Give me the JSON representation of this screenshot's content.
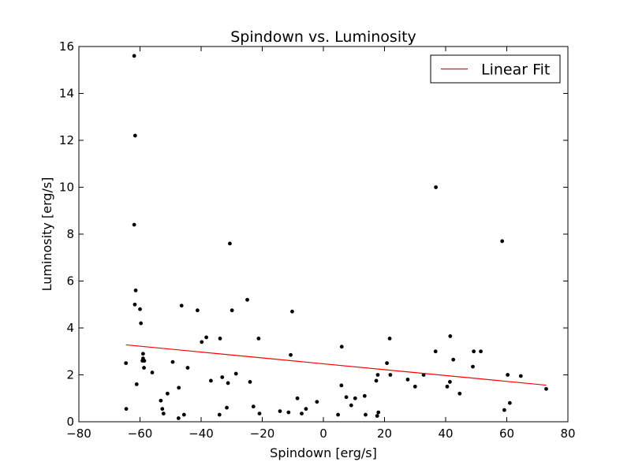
{
  "chart_data": {
    "type": "scatter",
    "title": "Spindown vs. Luminosity",
    "xlabel": "Spindown [erg/s]",
    "ylabel": "Luminosity [erg/s]",
    "xlim": [
      -80,
      80
    ],
    "ylim": [
      0,
      16
    ],
    "xticks": [
      -80,
      -60,
      -40,
      -20,
      0,
      20,
      40,
      60,
      80
    ],
    "yticks": [
      0,
      2,
      4,
      6,
      8,
      10,
      12,
      14,
      16
    ],
    "grid": false,
    "legend": {
      "placement": "top-right",
      "entries": [
        "Linear Fit"
      ]
    },
    "colors": {
      "points": "#000000",
      "fit": "#ff0000",
      "axes": "#000000"
    },
    "series": [
      {
        "kind": "scatter",
        "points": [
          [
            -61.9,
            15.6
          ],
          [
            -61.6,
            12.2
          ],
          [
            -61.9,
            8.4
          ],
          [
            -61.4,
            5.6
          ],
          [
            -61.7,
            5.0
          ],
          [
            -60.0,
            4.8
          ],
          [
            -59.7,
            4.2
          ],
          [
            -59.0,
            2.9
          ],
          [
            -59.0,
            2.7
          ],
          [
            -58.6,
            2.6
          ],
          [
            -59.2,
            2.6
          ],
          [
            -58.7,
            2.3
          ],
          [
            -64.6,
            2.5
          ],
          [
            -64.5,
            0.55
          ],
          [
            -61.1,
            1.6
          ],
          [
            -56.0,
            2.1
          ],
          [
            -53.2,
            0.9
          ],
          [
            -52.7,
            0.55
          ],
          [
            -52.3,
            0.35
          ],
          [
            -51.0,
            1.2
          ],
          [
            -49.3,
            2.55
          ],
          [
            -47.3,
            1.45
          ],
          [
            -46.4,
            4.95
          ],
          [
            -47.4,
            0.15
          ],
          [
            -45.6,
            0.3
          ],
          [
            -44.4,
            2.3
          ],
          [
            -41.2,
            4.75
          ],
          [
            -39.8,
            3.4
          ],
          [
            -38.3,
            3.6
          ],
          [
            -36.8,
            1.75
          ],
          [
            -33.8,
            3.55
          ],
          [
            -34.0,
            0.3
          ],
          [
            -33.1,
            1.9
          ],
          [
            -31.6,
            0.6
          ],
          [
            -31.2,
            1.65
          ],
          [
            -30.6,
            7.6
          ],
          [
            -29.9,
            4.75
          ],
          [
            -28.6,
            2.05
          ],
          [
            -24.9,
            5.2
          ],
          [
            -24.0,
            1.7
          ],
          [
            -22.9,
            0.65
          ],
          [
            -21.2,
            3.55
          ],
          [
            -20.9,
            0.35
          ],
          [
            -14.2,
            0.45
          ],
          [
            -11.4,
            0.4
          ],
          [
            -10.7,
            2.85
          ],
          [
            -10.2,
            4.7
          ],
          [
            -8.5,
            1.0
          ],
          [
            -7.1,
            0.35
          ],
          [
            -5.7,
            0.55
          ],
          [
            -2.1,
            0.85
          ],
          [
            4.8,
            0.3
          ],
          [
            5.9,
            1.55
          ],
          [
            6.0,
            3.2
          ],
          [
            7.5,
            1.05
          ],
          [
            9.1,
            0.7
          ],
          [
            10.4,
            1.0
          ],
          [
            13.5,
            1.1
          ],
          [
            13.8,
            0.3
          ],
          [
            17.3,
            1.75
          ],
          [
            17.8,
            2.0
          ],
          [
            17.6,
            0.25
          ],
          [
            18.0,
            0.4
          ],
          [
            20.8,
            2.5
          ],
          [
            21.7,
            3.55
          ],
          [
            21.9,
            2.0
          ],
          [
            27.6,
            1.8
          ],
          [
            30.0,
            1.5
          ],
          [
            32.8,
            2.0
          ],
          [
            36.8,
            10.0
          ],
          [
            36.7,
            3.0
          ],
          [
            40.5,
            1.5
          ],
          [
            41.4,
            1.7
          ],
          [
            41.5,
            3.65
          ],
          [
            42.5,
            2.65
          ],
          [
            44.6,
            1.2
          ],
          [
            48.9,
            2.35
          ],
          [
            49.2,
            3.0
          ],
          [
            51.5,
            3.0
          ],
          [
            58.5,
            7.7
          ],
          [
            59.2,
            0.5
          ],
          [
            60.3,
            2.0
          ],
          [
            61.0,
            0.8
          ],
          [
            64.6,
            1.95
          ],
          [
            72.9,
            1.4
          ]
        ]
      },
      {
        "name": "Linear Fit",
        "kind": "line",
        "points": [
          [
            -64.6,
            3.28
          ],
          [
            72.9,
            1.56
          ]
        ]
      }
    ]
  }
}
